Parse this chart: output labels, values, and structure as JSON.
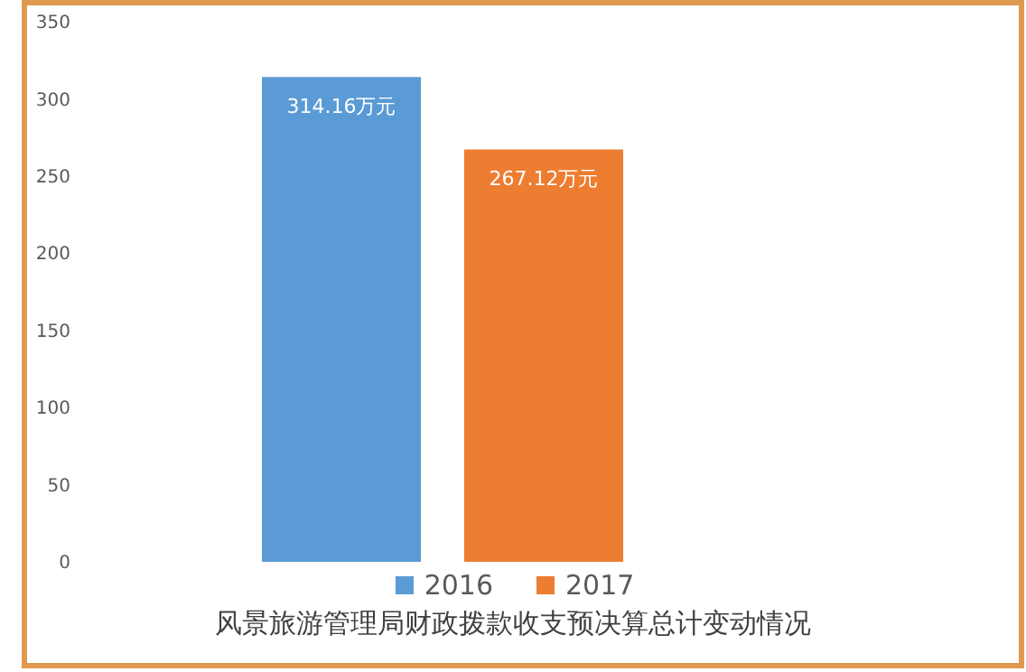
{
  "chart_data": {
    "type": "bar",
    "title": "风景旅游管理局财政拨款收支预决算总计变动情况",
    "categories": [
      null
    ],
    "series": [
      {
        "name": "2016",
        "color": "#5b9bd5",
        "values": [
          314.16
        ],
        "value_labels": [
          "314.16万元"
        ]
      },
      {
        "name": "2017",
        "color": "#ed7d31",
        "values": [
          267.12
        ],
        "value_labels": [
          "267.12万元"
        ]
      },
      {
        "color": "#a5a5a5",
        "values": [
          0
        ]
      }
    ],
    "ylim": [
      0,
      350
    ],
    "yticks": [
      0,
      50,
      100,
      150,
      200,
      250,
      300,
      350
    ],
    "legend": "bottom"
  }
}
